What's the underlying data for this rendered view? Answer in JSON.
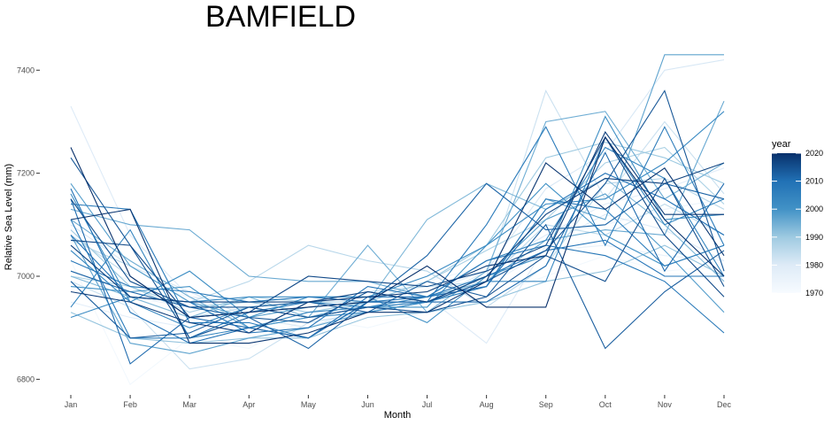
{
  "chart_data": {
    "type": "line",
    "title": "BAMFIELD",
    "xlabel": "Month",
    "ylabel": "Relative Sea Level (mm)",
    "x": [
      "Jan",
      "Feb",
      "Mar",
      "Apr",
      "May",
      "Jun",
      "Jul",
      "Aug",
      "Sep",
      "Oct",
      "Nov",
      "Dec"
    ],
    "yticks": [
      6800,
      7000,
      7200,
      7400
    ],
    "ylim": [
      6780,
      7440
    ],
    "grid": false,
    "legend": {
      "title": "year",
      "position": "right",
      "ticks": [
        1970,
        1980,
        1990,
        2000,
        2010,
        2020
      ],
      "range": [
        1970,
        2020
      ],
      "color_low": "#f7fbff",
      "color_high": "#08306b"
    },
    "series": [
      {
        "year": 1972,
        "values": [
          7030,
          6790,
          6880,
          6860,
          6920,
          6900,
          6930,
          6960,
          7000,
          7040,
          7010,
          7020
        ]
      },
      {
        "year": 1974,
        "values": [
          7050,
          6990,
          6960,
          6940,
          6950,
          6960,
          6990,
          7020,
          7080,
          7100,
          7130,
          7150
        ]
      },
      {
        "year": 1976,
        "values": [
          7000,
          6960,
          6940,
          6950,
          6960,
          6960,
          6980,
          6980,
          7050,
          7060,
          7040,
          7030
        ]
      },
      {
        "year": 1978,
        "values": [
          6950,
          6920,
          6900,
          6930,
          6940,
          6940,
          6970,
          7010,
          7080,
          7140,
          7170,
          7210
        ]
      },
      {
        "year": 1980,
        "values": [
          7330,
          7080,
          6960,
          6950,
          6930,
          6940,
          6960,
          6870,
          7060,
          7120,
          7090,
          7030
        ]
      },
      {
        "year": 1981,
        "values": [
          7100,
          7020,
          6970,
          6920,
          6900,
          6940,
          6950,
          7010,
          7170,
          7240,
          7400,
          7420
        ]
      },
      {
        "year": 1983,
        "values": [
          6990,
          6940,
          6820,
          6840,
          6910,
          6930,
          6960,
          7000,
          7360,
          7150,
          7300,
          7160
        ]
      },
      {
        "year": 1985,
        "values": [
          7080,
          7000,
          6920,
          6940,
          6950,
          6970,
          6980,
          6990,
          7100,
          7080,
          7140,
          7080
        ]
      },
      {
        "year": 1986,
        "values": [
          7070,
          7020,
          6950,
          6990,
          7060,
          7030,
          7010,
          6940,
          7020,
          7180,
          7190,
          7130
        ]
      },
      {
        "year": 1988,
        "values": [
          7000,
          6980,
          6930,
          6960,
          6950,
          6950,
          6990,
          7050,
          7110,
          7220,
          7250,
          7140
        ]
      },
      {
        "year": 1990,
        "values": [
          7090,
          6980,
          6940,
          6950,
          6930,
          6950,
          6990,
          7060,
          7230,
          7260,
          7230,
          7180
        ]
      },
      {
        "year": 1991,
        "values": [
          6930,
          6880,
          6870,
          6880,
          6880,
          6920,
          6930,
          6950,
          6990,
          7010,
          7060,
          7000
        ]
      },
      {
        "year": 1993,
        "values": [
          7000,
          6960,
          6920,
          6960,
          6920,
          6950,
          7110,
          7180,
          7130,
          7190,
          7100,
          6990
        ]
      },
      {
        "year": 1995,
        "values": [
          7110,
          7030,
          6960,
          6900,
          6920,
          7060,
          6930,
          7010,
          7300,
          7320,
          7150,
          7220
        ]
      },
      {
        "year": 1996,
        "values": [
          7130,
          7100,
          7090,
          7000,
          6990,
          6990,
          6960,
          6990,
          7070,
          7090,
          7080,
          7340
        ]
      },
      {
        "year": 1997,
        "values": [
          7080,
          6870,
          6850,
          6880,
          6900,
          6930,
          6950,
          6980,
          7150,
          7110,
          7430,
          7430
        ]
      },
      {
        "year": 1998,
        "values": [
          7180,
          7020,
          6950,
          6920,
          6940,
          6950,
          6950,
          7000,
          7110,
          7160,
          7050,
          6930
        ]
      },
      {
        "year": 2000,
        "values": [
          6980,
          6970,
          6980,
          6900,
          6920,
          6940,
          6940,
          7060,
          7180,
          7080,
          7020,
          7060
        ]
      },
      {
        "year": 2001,
        "values": [
          7160,
          6950,
          7010,
          6920,
          6960,
          6960,
          6910,
          7000,
          7040,
          7310,
          7110,
          7120
        ]
      },
      {
        "year": 2002,
        "values": [
          6920,
          6960,
          6950,
          6960,
          6960,
          6960,
          7000,
          7060,
          7140,
          7150,
          7220,
          7320
        ]
      },
      {
        "year": 2003,
        "values": [
          7050,
          6950,
          6900,
          6940,
          6920,
          6930,
          6950,
          6990,
          6990,
          7270,
          7100,
          7150
        ]
      },
      {
        "year": 2004,
        "values": [
          6940,
          7090,
          6880,
          6900,
          6930,
          6940,
          6960,
          7030,
          7070,
          7250,
          7190,
          7000
        ]
      },
      {
        "year": 2006,
        "values": [
          7110,
          6880,
          6880,
          6930,
          6950,
          6940,
          6950,
          6980,
          7150,
          7130,
          7020,
          7060
        ]
      },
      {
        "year": 2007,
        "values": [
          7140,
          7130,
          6910,
          6910,
          6880,
          6950,
          6950,
          7100,
          7290,
          7060,
          7290,
          7060
        ]
      },
      {
        "year": 2008,
        "values": [
          7030,
          6980,
          6970,
          6950,
          6960,
          6950,
          6960,
          7030,
          7060,
          7040,
          6990,
          6890
        ]
      },
      {
        "year": 2009,
        "values": [
          7080,
          6960,
          6950,
          6890,
          6900,
          6980,
          6960,
          7000,
          7050,
          7070,
          7000,
          7000
        ]
      },
      {
        "year": 2010,
        "values": [
          7170,
          6930,
          6870,
          6900,
          6880,
          6960,
          6960,
          6980,
          7130,
          7200,
          7150,
          7080
        ]
      },
      {
        "year": 2011,
        "values": [
          7150,
          6830,
          6920,
          6900,
          6880,
          6950,
          6950,
          6950,
          7020,
          7240,
          7010,
          7180
        ]
      },
      {
        "year": 2012,
        "values": [
          7010,
          6970,
          6940,
          6920,
          6860,
          6950,
          7040,
          7180,
          7090,
          7100,
          7180,
          7150
        ]
      },
      {
        "year": 2013,
        "values": [
          6990,
          6880,
          6890,
          6940,
          6950,
          6930,
          6990,
          6960,
          7100,
          6860,
          6970,
          7050
        ]
      },
      {
        "year": 2014,
        "values": [
          7230,
          7060,
          6880,
          6920,
          6910,
          6970,
          6950,
          6990,
          7050,
          7180,
          7360,
          7010
        ]
      },
      {
        "year": 2015,
        "values": [
          7150,
          6990,
          6940,
          6940,
          6920,
          6940,
          6930,
          6960,
          7040,
          6990,
          7190,
          6980
        ]
      },
      {
        "year": 2016,
        "values": [
          7070,
          7060,
          6920,
          6930,
          7000,
          6990,
          6980,
          7010,
          7060,
          7270,
          7080,
          6960
        ]
      },
      {
        "year": 2017,
        "values": [
          7060,
          6960,
          6950,
          6950,
          6950,
          6970,
          6950,
          7000,
          7120,
          7190,
          7180,
          7220
        ]
      },
      {
        "year": 2018,
        "values": [
          6970,
          6950,
          6910,
          6890,
          6950,
          6960,
          6970,
          7020,
          7040,
          7280,
          7120,
          7120
        ]
      },
      {
        "year": 2019,
        "values": [
          7110,
          7130,
          6870,
          6870,
          6890,
          6930,
          6930,
          6990,
          7220,
          7130,
          7210,
          7040
        ]
      },
      {
        "year": 2020,
        "values": [
          7250,
          7000,
          6920,
          6930,
          6940,
          6950,
          7020,
          6940,
          6940,
          7270,
          7110,
          7000
        ]
      }
    ]
  }
}
